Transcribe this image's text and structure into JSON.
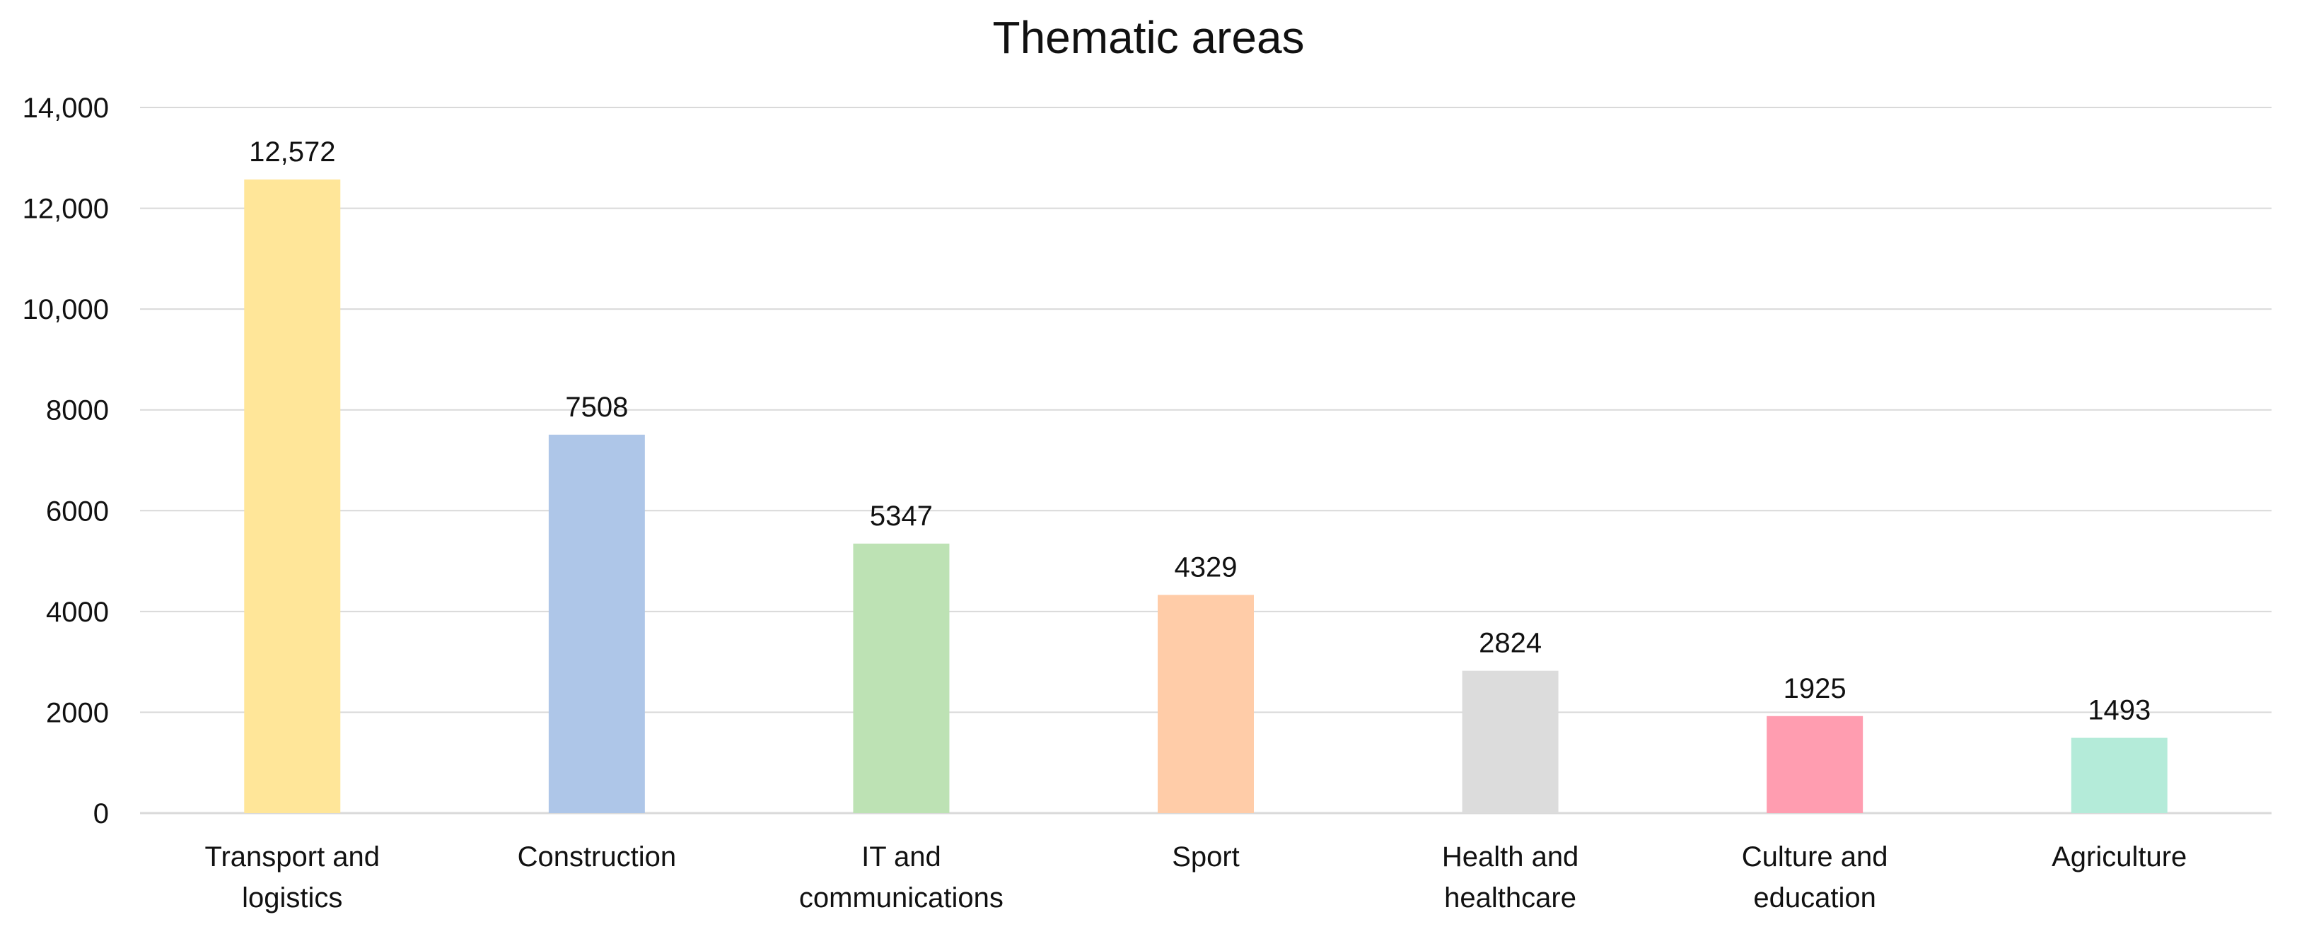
{
  "chart_data": {
    "type": "bar",
    "title": "Thematic areas",
    "xlabel": "",
    "ylabel": "",
    "ylim": [
      0,
      14000
    ],
    "yticks": [
      0,
      2000,
      4000,
      6000,
      8000,
      10000,
      12000,
      14000
    ],
    "ytick_labels": [
      "0",
      "2000",
      "4000",
      "6000",
      "8000",
      "10,000",
      "12,000",
      "14,000"
    ],
    "grid": true,
    "legend": "none",
    "categories": [
      [
        "Transport and",
        "logistics"
      ],
      [
        "Construction"
      ],
      [
        "IT and",
        "communications"
      ],
      [
        "Sport"
      ],
      [
        "Health and",
        "healthcare"
      ],
      [
        "Culture and",
        "education"
      ],
      [
        "Agriculture"
      ]
    ],
    "values": [
      12572,
      7508,
      5347,
      4329,
      2824,
      1925,
      1493
    ],
    "value_labels": [
      "12,572",
      "7508",
      "5347",
      "4329",
      "2824",
      "1925",
      "1493"
    ],
    "colors": [
      "#FFE699",
      "#AEC6E8",
      "#BDE2B4",
      "#FFCCA8",
      "#DCDCDC",
      "#FF9DB0",
      "#B4EBD9"
    ]
  }
}
